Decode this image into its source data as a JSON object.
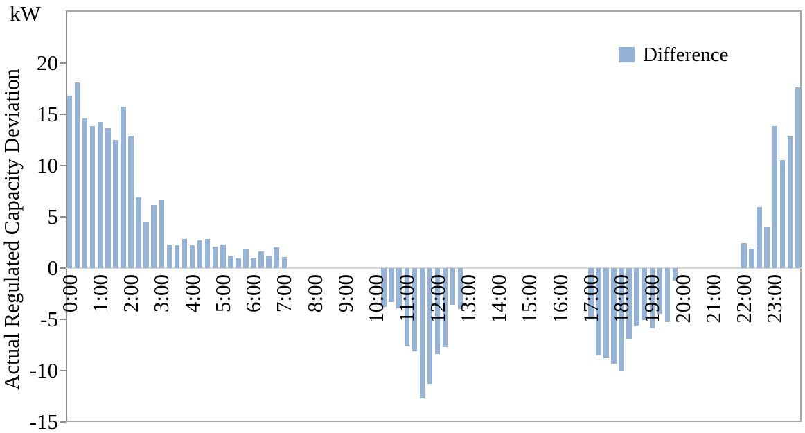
{
  "figure": {
    "y_unit_label": "kW",
    "y_axis_title": "Actual Regulated Capacity Deviation",
    "legend": {
      "label": "Difference",
      "swatch_color": "#95B3D7"
    }
  },
  "chart_data": {
    "type": "bar",
    "title": "",
    "ylabel": "Actual Regulated Capacity Deviation",
    "y_unit": "kW",
    "ylim": [
      -15,
      25
    ],
    "yticks": [
      20,
      15,
      10,
      5,
      0,
      -5,
      -10,
      -15
    ],
    "grid": "off",
    "legend_position": "top-right",
    "bar_color": "#95B3D7",
    "axis_line_color": "#8c8c8c",
    "zero_line_color": "#d6d6d6",
    "x_interval_minutes": 15,
    "x_hour_labels": [
      "0:00",
      "1:00",
      "2:00",
      "3:00",
      "4:00",
      "5:00",
      "6:00",
      "7:00",
      "8:00",
      "9:00",
      "10:00",
      "11:00",
      "12:00",
      "13:00",
      "14:00",
      "15:00",
      "16:00",
      "17:00",
      "18:00",
      "19:00",
      "20:00",
      "21:00",
      "22:00",
      "23:00"
    ],
    "series": [
      {
        "name": "Difference",
        "values": [
          16.8,
          18.1,
          14.6,
          13.8,
          14.2,
          13.6,
          12.5,
          15.7,
          12.9,
          6.9,
          4.5,
          6.1,
          6.7,
          2.3,
          2.2,
          2.8,
          2.2,
          2.7,
          2.8,
          2.1,
          2.3,
          1.2,
          0.9,
          1.8,
          1.0,
          1.6,
          1.2,
          2.0,
          1.1,
          null,
          null,
          null,
          null,
          null,
          null,
          null,
          null,
          null,
          null,
          null,
          null,
          -3.8,
          -3.3,
          -3.9,
          -7.6,
          -8.1,
          -12.7,
          -11.3,
          -8.4,
          -7.7,
          -3.6,
          -4.0,
          null,
          null,
          null,
          null,
          null,
          null,
          null,
          null,
          null,
          null,
          null,
          null,
          null,
          null,
          null,
          null,
          -5.0,
          -8.5,
          -8.8,
          -9.3,
          -10.1,
          -6.9,
          -5.6,
          -5.1,
          -5.9,
          -4.5,
          -5.3,
          -1.2,
          null,
          null,
          null,
          null,
          null,
          null,
          null,
          null,
          2.4,
          1.9,
          5.9,
          4.0,
          13.8,
          10.5,
          12.8,
          17.6
        ]
      }
    ]
  }
}
